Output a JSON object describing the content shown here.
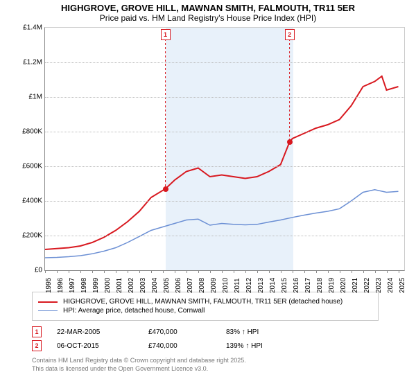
{
  "title_line1": "HIGHGROVE, GROVE HILL, MAWNAN SMITH, FALMOUTH, TR11 5ER",
  "title_line2": "Price paid vs. HM Land Registry's House Price Index (HPI)",
  "chart": {
    "type": "line",
    "x_domain": [
      1995,
      2025.5
    ],
    "y_domain": [
      0,
      1400000
    ],
    "x_ticks": [
      1995,
      1996,
      1997,
      1998,
      1999,
      2000,
      2001,
      2002,
      2003,
      2004,
      2005,
      2006,
      2007,
      2008,
      2009,
      2010,
      2011,
      2012,
      2013,
      2014,
      2015,
      2016,
      2017,
      2018,
      2019,
      2020,
      2021,
      2022,
      2023,
      2024,
      2025
    ],
    "y_ticks": [
      {
        "v": 0,
        "label": "£0"
      },
      {
        "v": 200000,
        "label": "£200K"
      },
      {
        "v": 400000,
        "label": "£400K"
      },
      {
        "v": 600000,
        "label": "£600K"
      },
      {
        "v": 800000,
        "label": "£800K"
      },
      {
        "v": 1000000,
        "label": "£1M"
      },
      {
        "v": 1200000,
        "label": "£1.2M"
      },
      {
        "v": 1400000,
        "label": "£1.4M"
      }
    ],
    "shade_ranges": [
      {
        "x0": 2005.22,
        "x1": 2005.5,
        "color": "#d6e6f5"
      },
      {
        "x0": 2005.5,
        "x1": 2015.76,
        "color": "#d6e6f5"
      },
      {
        "x0": 2015.76,
        "x1": 2016.1,
        "color": "#d6e6f5"
      }
    ],
    "grid_color": "#bbbbbb",
    "background_color": "#ffffff",
    "series": [
      {
        "name": "price_paid",
        "label": "HIGHGROVE, GROVE HILL, MAWNAN SMITH, FALMOUTH, TR11 5ER (detached house)",
        "color": "#d8181f",
        "width": 2,
        "points": [
          [
            1995,
            120000
          ],
          [
            1996,
            125000
          ],
          [
            1997,
            130000
          ],
          [
            1998,
            140000
          ],
          [
            1999,
            160000
          ],
          [
            2000,
            190000
          ],
          [
            2001,
            230000
          ],
          [
            2002,
            280000
          ],
          [
            2003,
            340000
          ],
          [
            2004,
            420000
          ],
          [
            2005.22,
            470000
          ],
          [
            2006,
            520000
          ],
          [
            2007,
            570000
          ],
          [
            2008,
            590000
          ],
          [
            2009,
            540000
          ],
          [
            2010,
            550000
          ],
          [
            2011,
            540000
          ],
          [
            2012,
            530000
          ],
          [
            2013,
            540000
          ],
          [
            2014,
            570000
          ],
          [
            2015,
            610000
          ],
          [
            2015.76,
            740000
          ],
          [
            2016,
            760000
          ],
          [
            2017,
            790000
          ],
          [
            2018,
            820000
          ],
          [
            2019,
            840000
          ],
          [
            2020,
            870000
          ],
          [
            2021,
            950000
          ],
          [
            2022,
            1060000
          ],
          [
            2023,
            1090000
          ],
          [
            2023.6,
            1120000
          ],
          [
            2024,
            1040000
          ],
          [
            2025,
            1060000
          ]
        ]
      },
      {
        "name": "hpi",
        "label": "HPI: Average price, detached house, Cornwall",
        "color": "#6b8fd4",
        "width": 1.5,
        "points": [
          [
            1995,
            72000
          ],
          [
            1996,
            74000
          ],
          [
            1997,
            78000
          ],
          [
            1998,
            84000
          ],
          [
            1999,
            95000
          ],
          [
            2000,
            110000
          ],
          [
            2001,
            130000
          ],
          [
            2002,
            160000
          ],
          [
            2003,
            195000
          ],
          [
            2004,
            230000
          ],
          [
            2005,
            250000
          ],
          [
            2006,
            270000
          ],
          [
            2007,
            290000
          ],
          [
            2008,
            295000
          ],
          [
            2009,
            260000
          ],
          [
            2010,
            270000
          ],
          [
            2011,
            265000
          ],
          [
            2012,
            262000
          ],
          [
            2013,
            265000
          ],
          [
            2014,
            278000
          ],
          [
            2015,
            290000
          ],
          [
            2016,
            305000
          ],
          [
            2017,
            318000
          ],
          [
            2018,
            330000
          ],
          [
            2019,
            340000
          ],
          [
            2020,
            355000
          ],
          [
            2021,
            400000
          ],
          [
            2022,
            450000
          ],
          [
            2023,
            465000
          ],
          [
            2024,
            450000
          ],
          [
            2025,
            455000
          ]
        ]
      }
    ],
    "event_markers": [
      {
        "n": "1",
        "x": 2005.22,
        "y": 470000,
        "color": "#d8181f"
      },
      {
        "n": "2",
        "x": 2015.76,
        "y": 740000,
        "color": "#d8181f"
      }
    ]
  },
  "legend": {
    "items": [
      {
        "swatch_color": "#d8181f",
        "swatch_width": 2,
        "text": "HIGHGROVE, GROVE HILL, MAWNAN SMITH, FALMOUTH, TR11 5ER (detached house)"
      },
      {
        "swatch_color": "#6b8fd4",
        "swatch_width": 1.5,
        "text": "HPI: Average price, detached house, Cornwall"
      }
    ]
  },
  "events_table": {
    "rows": [
      {
        "n": "1",
        "color": "#d8181f",
        "date": "22-MAR-2005",
        "price": "£470,000",
        "pct": "83% ↑ HPI"
      },
      {
        "n": "2",
        "color": "#d8181f",
        "date": "06-OCT-2015",
        "price": "£740,000",
        "pct": "139% ↑ HPI"
      }
    ]
  },
  "footer": {
    "line1": "Contains HM Land Registry data © Crown copyright and database right 2025.",
    "line2": "This data is licensed under the Open Government Licence v3.0."
  }
}
